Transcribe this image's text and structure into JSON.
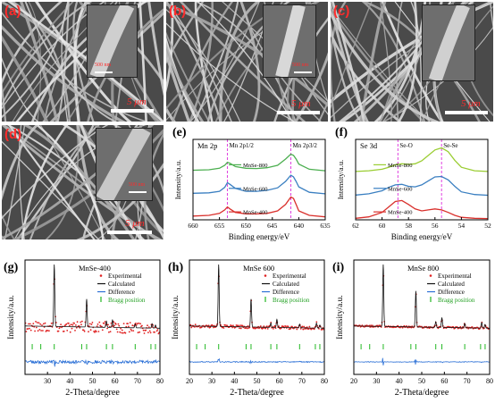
{
  "sem_panels": [
    {
      "id": "a",
      "label": "(a)",
      "scale": "5 μm",
      "inset_scale": "500 nm"
    },
    {
      "id": "b",
      "label": "(b)",
      "scale": "5 μm",
      "inset_scale": "500 nm"
    },
    {
      "id": "c",
      "label": "(c)",
      "scale": "5 μm",
      "inset_scale": ""
    },
    {
      "id": "d",
      "label": "(d)",
      "scale": "5 μm",
      "inset_scale": "500 nm"
    }
  ],
  "chart_data": [
    {
      "id": "e",
      "type": "line",
      "label": "(e)",
      "region": "Mn 2p",
      "xlabel": "Binding energy/eV",
      "ylabel": "Intensity/a.u.",
      "xlim": [
        660,
        635
      ],
      "xticks": [
        660,
        655,
        650,
        645,
        640,
        635
      ],
      "peak_labels": [
        {
          "text": "Mn 2p1/2",
          "x": 653.5
        },
        {
          "text": "Mn 2p3/2",
          "x": 641.5
        }
      ],
      "series": [
        {
          "name": "MnSe-800",
          "color": "#4caf50",
          "offset": 2.0,
          "x": [
            660,
            657,
            655,
            654,
            653.5,
            653,
            652,
            650,
            648,
            646,
            644,
            642.5,
            641.5,
            641,
            640.5,
            640,
            638,
            635
          ],
          "y": [
            0.1,
            0.12,
            0.18,
            0.3,
            0.42,
            0.38,
            0.25,
            0.18,
            0.17,
            0.2,
            0.3,
            0.55,
            0.75,
            0.7,
            0.55,
            0.35,
            0.14,
            0.08
          ]
        },
        {
          "name": "MnSe-600",
          "color": "#3a7fc1",
          "offset": 1.0,
          "x": [
            660,
            657,
            655,
            654,
            653.5,
            653,
            652,
            650,
            648,
            646,
            644,
            642.5,
            641.5,
            641,
            640.5,
            640,
            638,
            635
          ],
          "y": [
            0.12,
            0.14,
            0.2,
            0.36,
            0.55,
            0.48,
            0.32,
            0.2,
            0.2,
            0.24,
            0.34,
            0.6,
            0.85,
            0.78,
            0.6,
            0.38,
            0.16,
            0.1
          ]
        },
        {
          "name": "MnSe-400",
          "color": "#d9302c",
          "offset": 0.0,
          "x": [
            660,
            657,
            655,
            654,
            653.5,
            653,
            652,
            650,
            648,
            646,
            644,
            642.5,
            641.5,
            641,
            640.5,
            640,
            638,
            635
          ],
          "y": [
            0.15,
            0.18,
            0.26,
            0.4,
            0.52,
            0.44,
            0.3,
            0.24,
            0.24,
            0.26,
            0.36,
            0.62,
            0.92,
            0.86,
            0.62,
            0.36,
            0.18,
            0.12
          ]
        }
      ]
    },
    {
      "id": "f",
      "type": "line",
      "label": "(f)",
      "region": "Se 3d",
      "xlabel": "Binding energy/eV",
      "ylabel": "Intensity/a.u.",
      "xlim": [
        62,
        52
      ],
      "xticks": [
        62,
        60,
        58,
        56,
        54,
        52
      ],
      "peak_labels": [
        {
          "text": "Se-O",
          "x": 58.8
        },
        {
          "text": "Se-Se",
          "x": 55.5
        }
      ],
      "series": [
        {
          "name": "MnSe-800",
          "color": "#9acd32",
          "offset": 2.0,
          "x": [
            62,
            61,
            60,
            59.5,
            59,
            58.5,
            58,
            57.5,
            57,
            56.5,
            56,
            55.5,
            55,
            54.5,
            54,
            53,
            52
          ],
          "y": [
            0.05,
            0.08,
            0.14,
            0.22,
            0.32,
            0.36,
            0.34,
            0.36,
            0.48,
            0.7,
            0.92,
            1.0,
            0.85,
            0.5,
            0.22,
            0.08,
            0.05
          ]
        },
        {
          "name": "MnSe-600",
          "color": "#3a7fc1",
          "offset": 1.0,
          "x": [
            62,
            61,
            60,
            59.5,
            59,
            58.5,
            58,
            57.5,
            57,
            56.5,
            56,
            55.5,
            55,
            54.5,
            54,
            53,
            52
          ],
          "y": [
            0.05,
            0.1,
            0.22,
            0.36,
            0.46,
            0.48,
            0.4,
            0.38,
            0.46,
            0.62,
            0.78,
            0.8,
            0.66,
            0.4,
            0.18,
            0.07,
            0.04
          ]
        },
        {
          "name": "MnSe-400",
          "color": "#d9302c",
          "offset": 0.0,
          "x": [
            62,
            61,
            60,
            59.5,
            59,
            58.5,
            58,
            57.5,
            57,
            56.5,
            56,
            55.5,
            55,
            54.5,
            54,
            53,
            52
          ],
          "y": [
            0.06,
            0.12,
            0.3,
            0.52,
            0.74,
            0.78,
            0.62,
            0.44,
            0.36,
            0.4,
            0.44,
            0.4,
            0.3,
            0.18,
            0.1,
            0.06,
            0.05
          ]
        }
      ]
    },
    {
      "id": "g",
      "type": "scatter",
      "label": "(g)",
      "title": "MnSe-400",
      "xlabel": "2-Theta/degree",
      "ylabel": "Intensity/a.u.",
      "xlim": [
        20,
        80
      ],
      "xticks": [
        30,
        40,
        50,
        60,
        70,
        80
      ],
      "legend": [
        "Experimental",
        "Calculated",
        "Difference",
        "Bragg position"
      ],
      "peaks": [
        {
          "x": 33.0,
          "h": 1.0
        },
        {
          "x": 47.4,
          "h": 0.45
        },
        {
          "x": 56.2,
          "h": 0.1
        },
        {
          "x": 58.9,
          "h": 0.12
        },
        {
          "x": 69.0,
          "h": 0.06
        },
        {
          "x": 76.5,
          "h": 0.07
        },
        {
          "x": 78.0,
          "h": 0.05
        }
      ],
      "bragg": [
        23.2,
        27.0,
        33.0,
        45.2,
        47.4,
        56.2,
        58.9,
        69.0,
        76.0,
        78.0
      ],
      "noise": 0.09
    },
    {
      "id": "h",
      "type": "scatter",
      "label": "(h)",
      "title": "MnSe 600",
      "xlabel": "2-Theta/degree",
      "ylabel": "Intensity/a.u.",
      "xlim": [
        20,
        80
      ],
      "xticks": [
        20,
        30,
        40,
        50,
        60,
        70,
        80
      ],
      "legend": [
        "Experimental",
        "Calculated",
        "Difference",
        "Bragg position"
      ],
      "peaks": [
        {
          "x": 33.0,
          "h": 1.0
        },
        {
          "x": 47.4,
          "h": 0.45
        },
        {
          "x": 56.2,
          "h": 0.07
        },
        {
          "x": 58.9,
          "h": 0.13
        },
        {
          "x": 69.0,
          "h": 0.06
        },
        {
          "x": 76.5,
          "h": 0.08
        },
        {
          "x": 78.0,
          "h": 0.05
        }
      ],
      "bragg": [
        23.2,
        27.0,
        33.0,
        45.2,
        47.4,
        56.2,
        58.9,
        69.0,
        76.0,
        78.0
      ],
      "noise": 0.025
    },
    {
      "id": "i",
      "type": "scatter",
      "label": "(i)",
      "title": "MnSe 800",
      "xlabel": "2-Theta/degree",
      "ylabel": "Intensity/a.u.",
      "xlim": [
        20,
        80
      ],
      "xticks": [
        20,
        30,
        40,
        50,
        60,
        70,
        80
      ],
      "legend": [
        "Experimental",
        "Calculated",
        "Difference",
        "Bragg position"
      ],
      "peaks": [
        {
          "x": 33.0,
          "h": 1.0
        },
        {
          "x": 47.4,
          "h": 0.58
        },
        {
          "x": 56.2,
          "h": 0.09
        },
        {
          "x": 58.9,
          "h": 0.16
        },
        {
          "x": 69.0,
          "h": 0.07
        },
        {
          "x": 76.5,
          "h": 0.09
        },
        {
          "x": 78.0,
          "h": 0.06
        }
      ],
      "bragg": [
        23.2,
        27.0,
        33.0,
        45.2,
        47.4,
        56.2,
        58.9,
        69.0,
        76.0,
        78.0
      ],
      "noise": 0.015
    }
  ]
}
